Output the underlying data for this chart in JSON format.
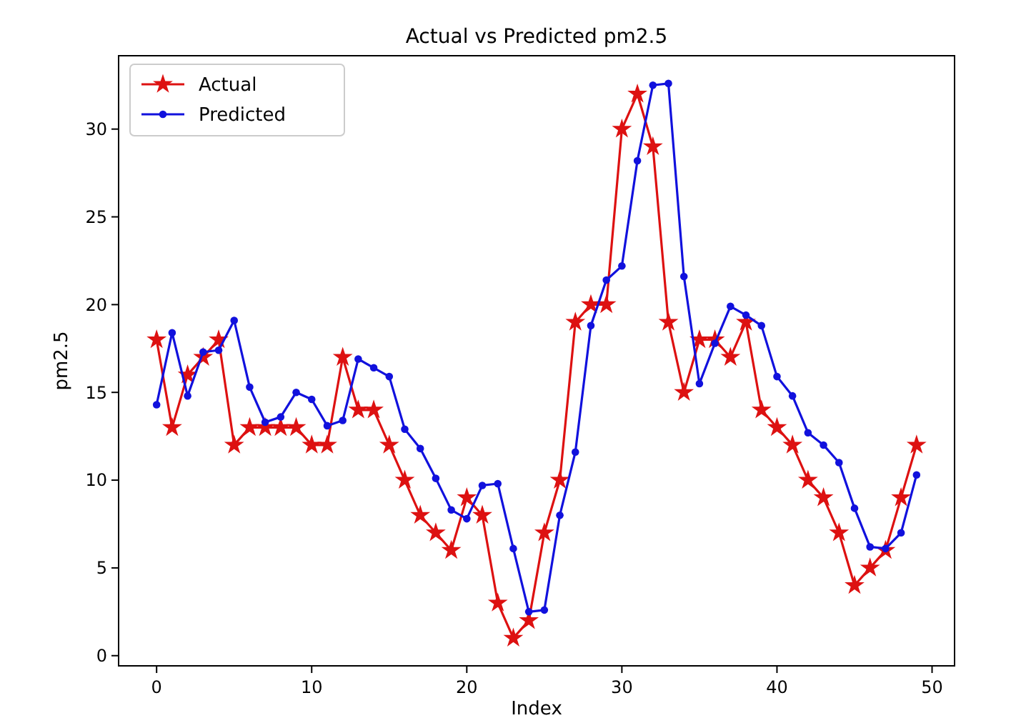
{
  "chart_data": {
    "type": "line",
    "title": "Actual vs Predicted pm2.5",
    "xlabel": "Index",
    "ylabel": "pm2.5",
    "x": [
      0,
      1,
      2,
      3,
      4,
      5,
      6,
      7,
      8,
      9,
      10,
      11,
      12,
      13,
      14,
      15,
      16,
      17,
      18,
      19,
      20,
      21,
      22,
      23,
      24,
      25,
      26,
      27,
      28,
      29,
      30,
      31,
      32,
      33,
      34,
      35,
      36,
      37,
      38,
      39,
      40,
      41,
      42,
      43,
      44,
      45,
      46,
      47,
      48,
      49
    ],
    "series": [
      {
        "name": "Actual",
        "color": "#dd1111",
        "marker": "star",
        "values": [
          18,
          13,
          16,
          17,
          18,
          12,
          13,
          13,
          13,
          13,
          12,
          12,
          17,
          14,
          14,
          12,
          10,
          8,
          7,
          6,
          9,
          8,
          3,
          1,
          2,
          7,
          10,
          19,
          20,
          20,
          30,
          32,
          29,
          19,
          15,
          18,
          18,
          17,
          19,
          14,
          13,
          12,
          10,
          9,
          7,
          4,
          5,
          6,
          9,
          12
        ]
      },
      {
        "name": "Predicted",
        "color": "#1111dd",
        "marker": "circle",
        "values": [
          14.3,
          18.4,
          14.8,
          17.3,
          17.4,
          19.1,
          15.3,
          13.3,
          13.6,
          15.0,
          14.6,
          13.1,
          13.4,
          16.9,
          16.4,
          15.9,
          12.9,
          11.8,
          10.1,
          8.3,
          7.8,
          9.7,
          9.8,
          6.1,
          2.5,
          2.6,
          8.0,
          11.6,
          18.8,
          21.4,
          22.2,
          28.2,
          32.5,
          32.6,
          21.6,
          15.5,
          17.8,
          19.9,
          19.4,
          18.8,
          15.9,
          14.8,
          12.7,
          12.0,
          11.0,
          8.4,
          6.2,
          6.1,
          7.0,
          10.3
        ]
      }
    ],
    "xlim": [
      -2.45,
      51.45
    ],
    "ylim": [
      -0.58,
      34.18
    ],
    "xticks": [
      0,
      10,
      20,
      30,
      40,
      50
    ],
    "yticks": [
      0,
      5,
      10,
      15,
      20,
      25,
      30
    ],
    "legend": "top left",
    "grid": false,
    "line_style": "solid"
  }
}
